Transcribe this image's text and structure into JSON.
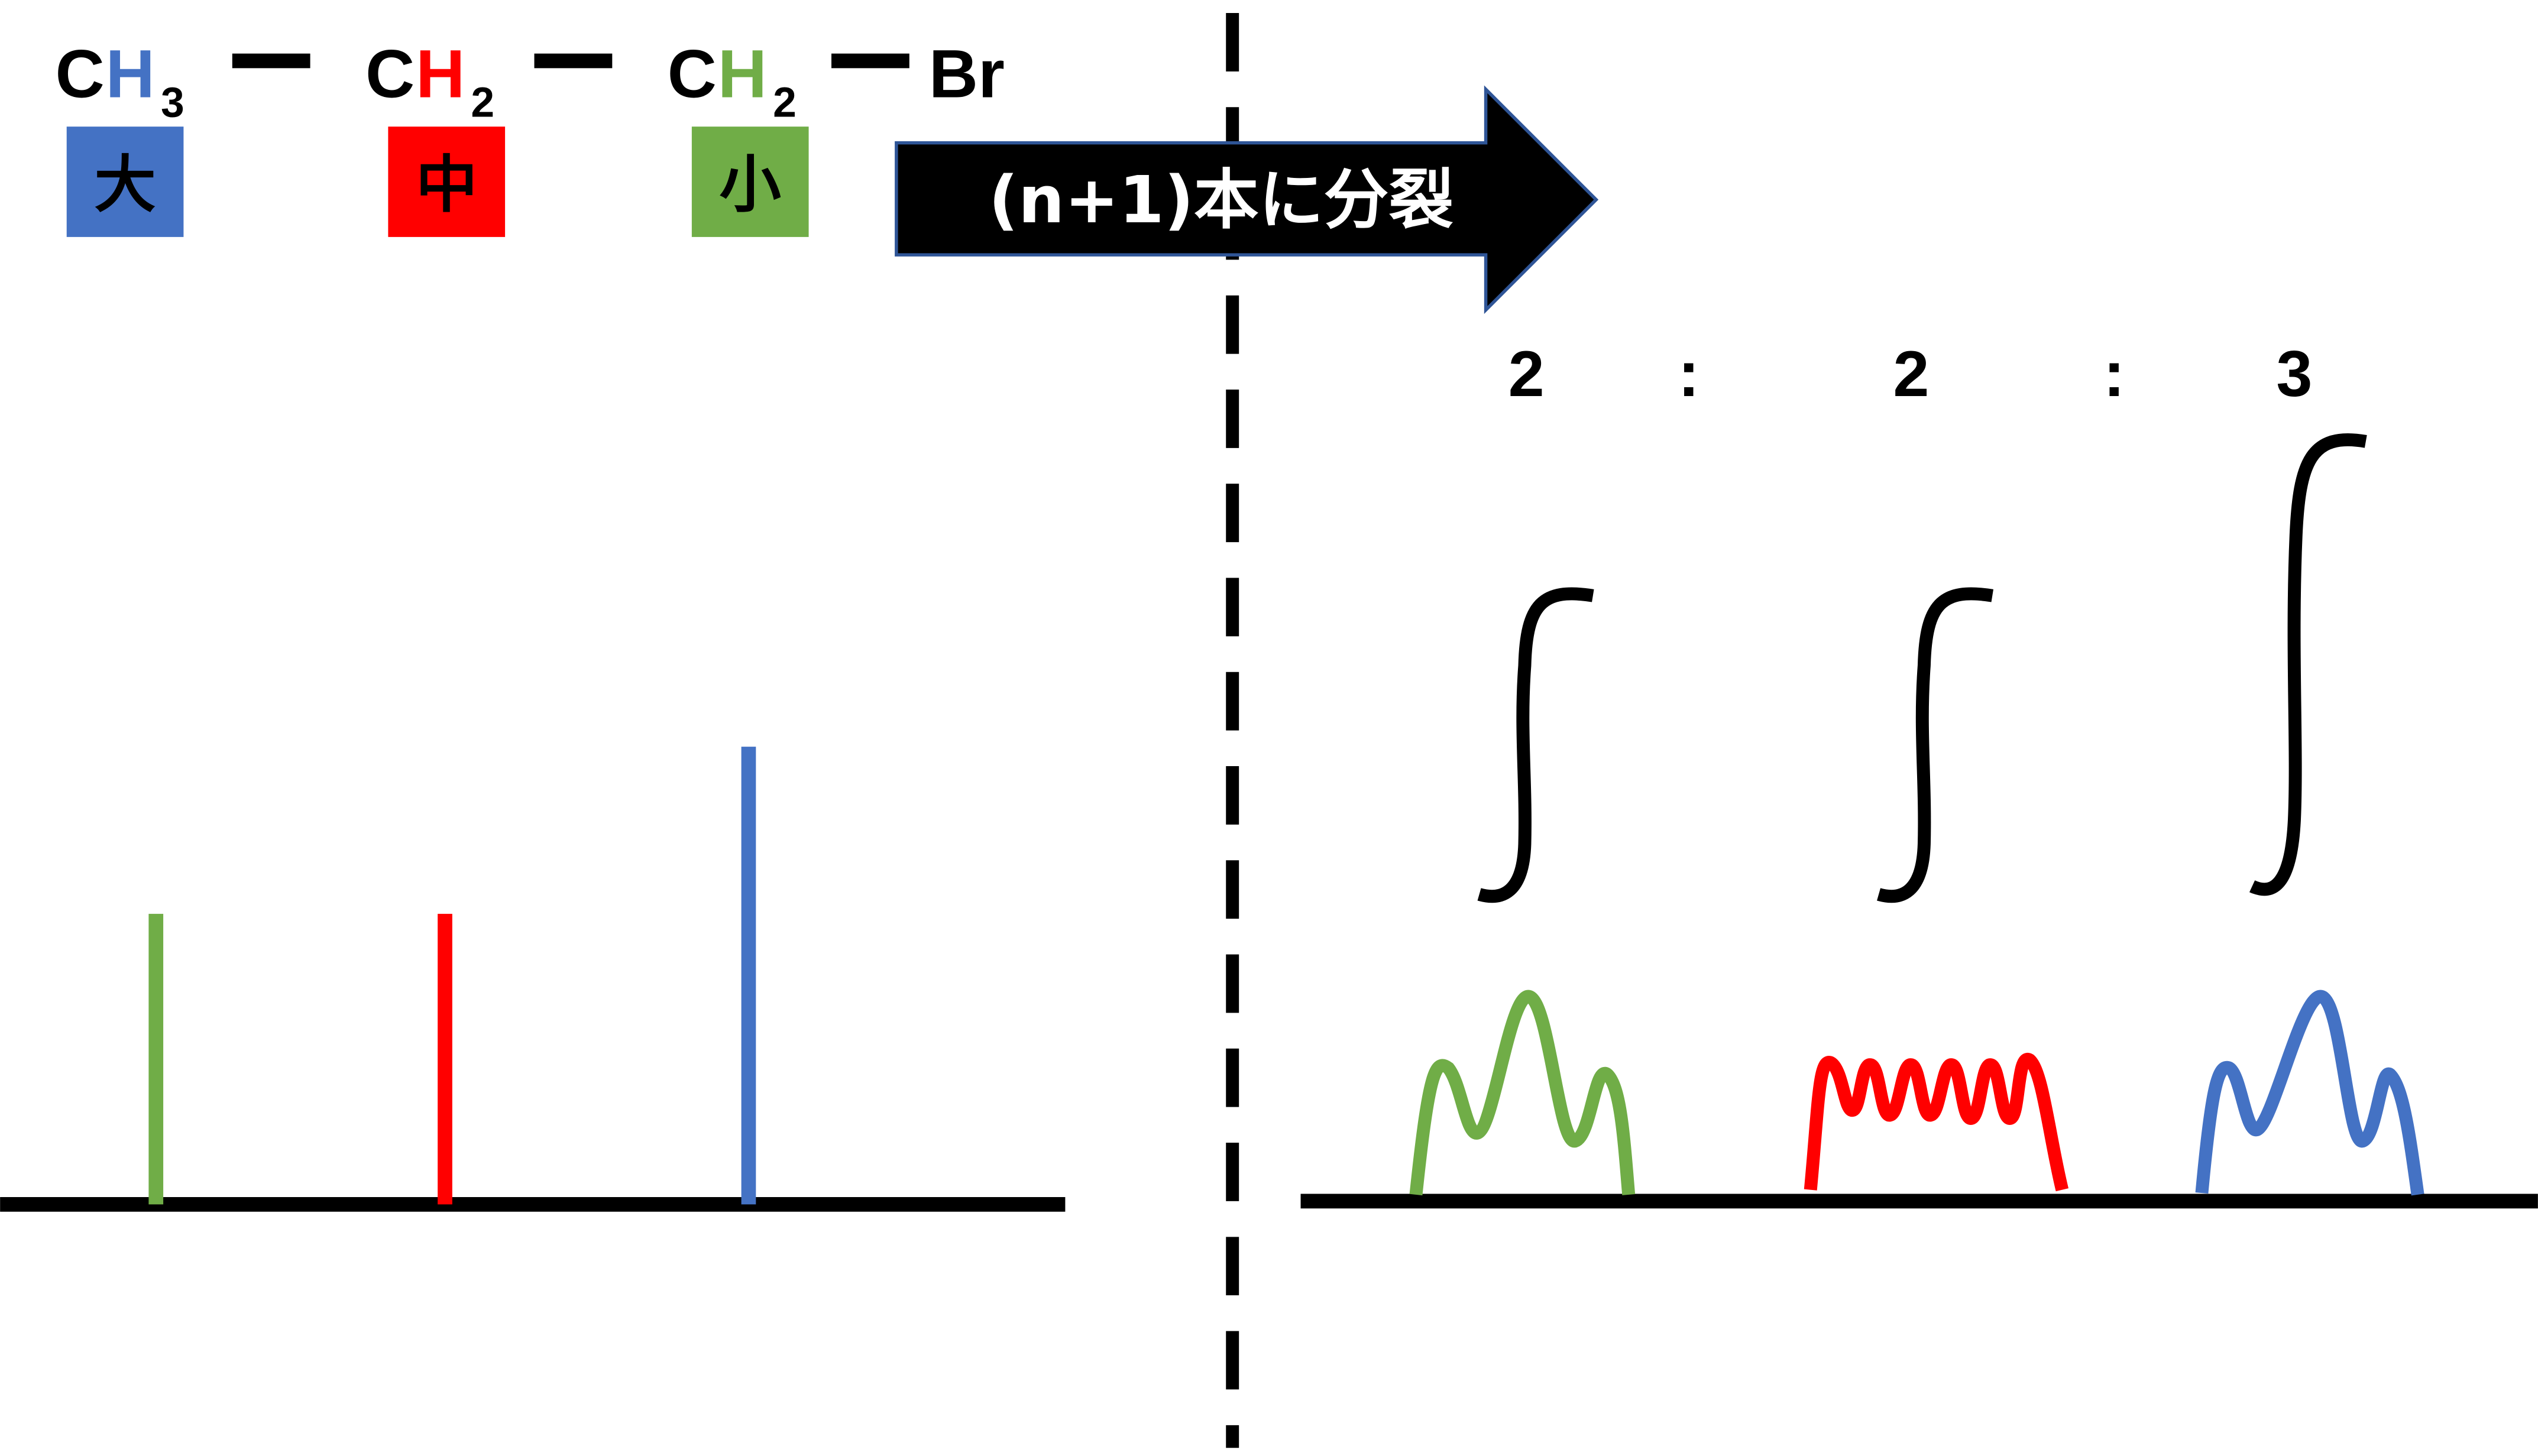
{
  "colors": {
    "ch3": "#4472C4",
    "ch2_middle": "#FF0000",
    "ch2_br": "#70AD47",
    "arrow_fill": "#000000",
    "arrow_border": "#2F5597"
  },
  "formula": {
    "group1": {
      "c": "C",
      "h": "H",
      "sub": "3"
    },
    "group2": {
      "c": "C",
      "h": "H",
      "sub": "2"
    },
    "group3": {
      "c": "C",
      "h": "H",
      "sub": "2"
    },
    "end": "Br"
  },
  "labels": {
    "ch3": "大",
    "ch2_middle": "中",
    "ch2_br": "小"
  },
  "arrow_text": "(n+1)本に分裂",
  "ratio": {
    "a": "2",
    "sep1": ":",
    "b": "2",
    "sep2": ":",
    "c": "3"
  }
}
